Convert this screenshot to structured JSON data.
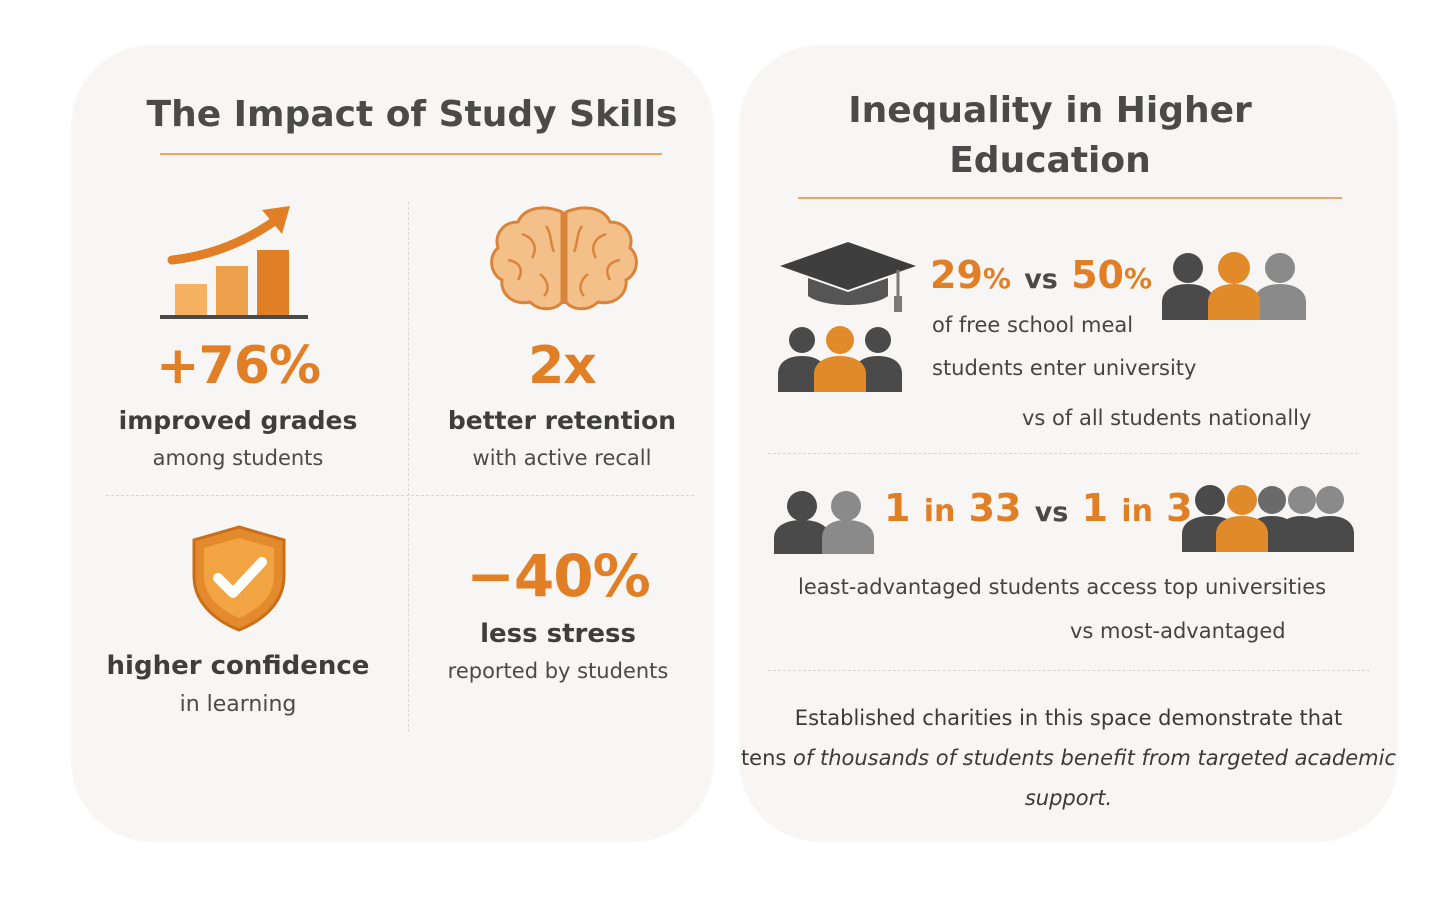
{
  "colors": {
    "accent": "#e07f26",
    "accent_light": "#f0a24c",
    "dark_gray": "#4a4a4a",
    "mid_gray": "#8a8a8a",
    "card_bg": "#f7f6f4"
  },
  "left": {
    "title": "The Impact of Study Skills",
    "cells": [
      {
        "icon": "rising-bar-chart-icon",
        "big": "+76%",
        "label": "improved grades",
        "sub": "among students"
      },
      {
        "icon": "brain-icon",
        "big": "2x",
        "label": "better retention",
        "sub": "with active recall"
      },
      {
        "icon": "shield-check-icon",
        "label": "higher confidence",
        "sub": "in learning"
      },
      {
        "big": "−40%",
        "label": "less stress",
        "sub": "reported by students"
      }
    ]
  },
  "right": {
    "title_line1": "Inequality in Higher",
    "title_line2": "Education",
    "block1": {
      "left_number": "29",
      "left_unit": "%",
      "vs": "vs",
      "right_number": "50",
      "right_unit": "%",
      "line1": "of free school meal",
      "line2": "students enter university",
      "line3": "vs of all students nationally"
    },
    "block2": {
      "left_a": "1",
      "left_in": "in",
      "left_b": "33",
      "vs": "vs",
      "right_a": "1",
      "right_in": "in",
      "right_b": "3",
      "line1": "least-advantaged students access top universities",
      "line2": "vs  most-advantaged"
    },
    "footer": {
      "line1": "Established charities in this space demonstrate that",
      "line2_prefix": "tens ",
      "line2_italic": "of thousands of students benefit from targeted academic support."
    }
  }
}
